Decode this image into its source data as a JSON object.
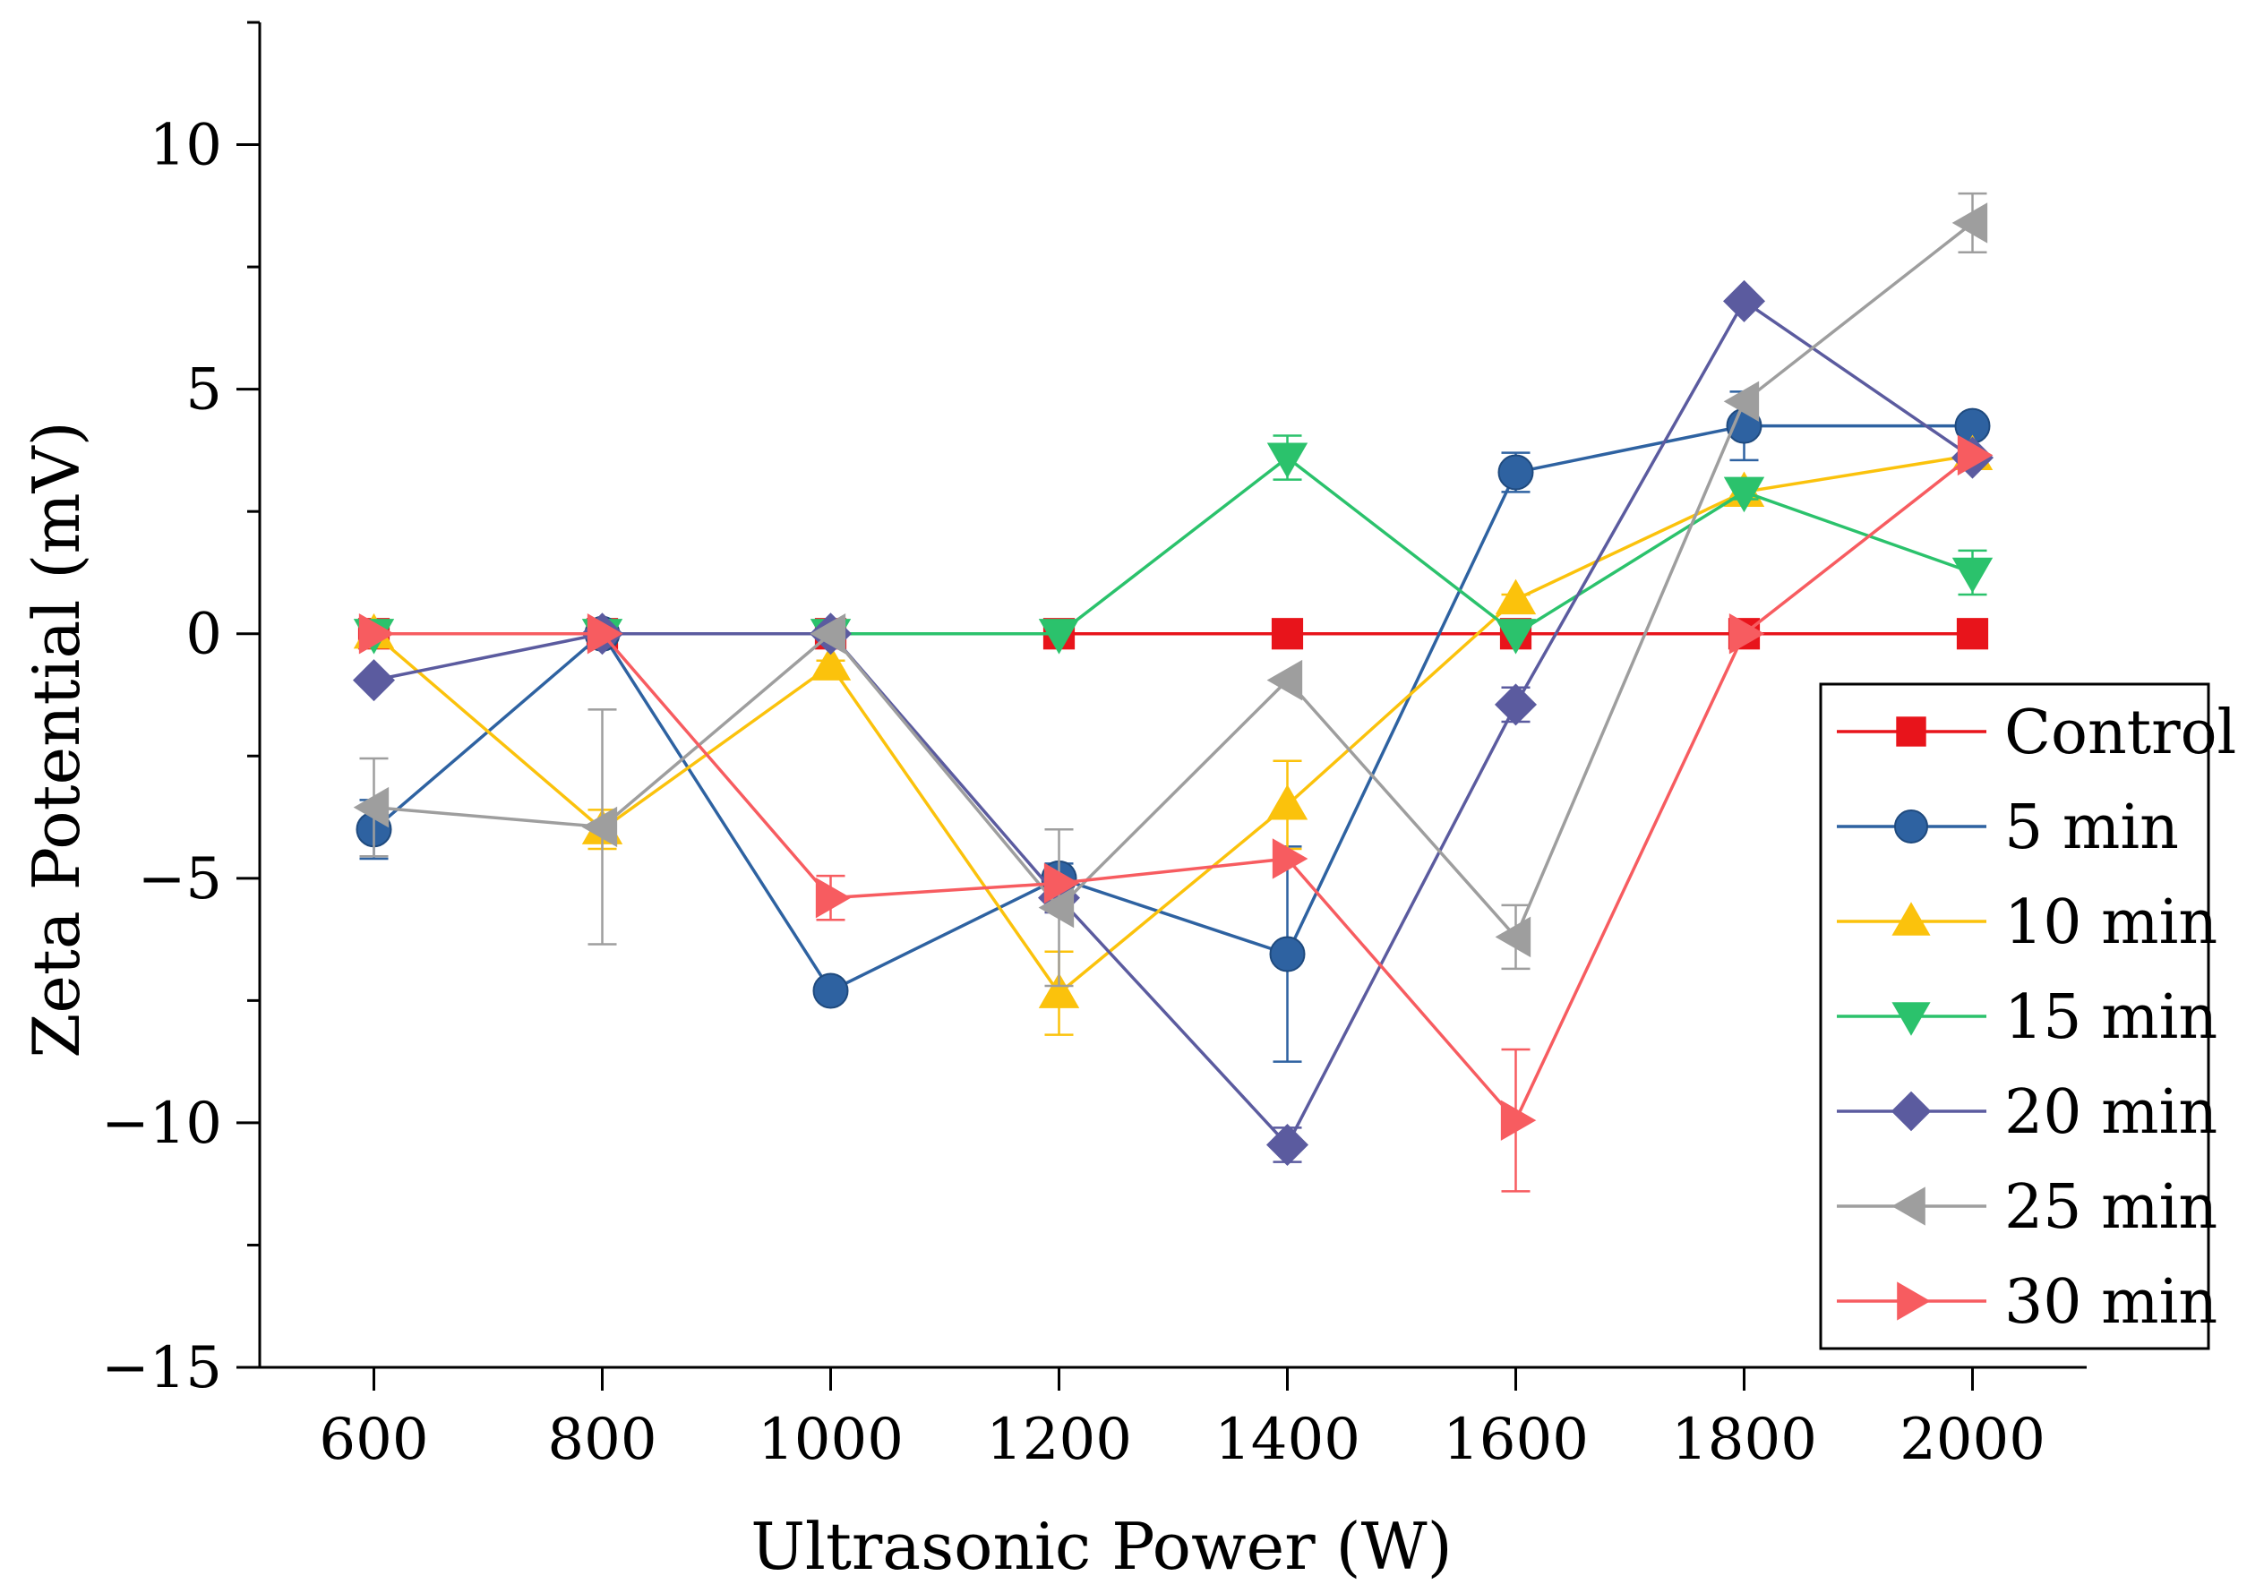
{
  "chart_data": {
    "type": "line",
    "title": "",
    "xlabel": "Ultrasonic Power (W)",
    "ylabel": "Zeta Potential (mV)",
    "xlim": [
      500,
      2100
    ],
    "ylim": [
      -15,
      12.5
    ],
    "x_ticks": [
      600,
      800,
      1000,
      1200,
      1400,
      1600,
      1800,
      2000
    ],
    "y_ticks": [
      -15,
      -10,
      -5,
      0,
      5,
      10
    ],
    "y_tick_labels": [
      "−15",
      "−10",
      "−5",
      "0",
      "5",
      "10"
    ],
    "x": [
      600,
      800,
      1000,
      1200,
      1400,
      1600,
      1800,
      2000
    ],
    "legend_position": "bottom-right",
    "series": [
      {
        "name": "Control",
        "color": "#e8141b",
        "marker": "square",
        "values": [
          0,
          0,
          0,
          0,
          0,
          0,
          0,
          0
        ],
        "errors": [
          0,
          0,
          0,
          0,
          0,
          0,
          0,
          0
        ]
      },
      {
        "name": "5 min",
        "color": "#2e62a1",
        "marker": "circle",
        "values": [
          -4.0,
          0,
          -7.3,
          -5.0,
          -6.55,
          3.3,
          4.25,
          4.25
        ],
        "errors": [
          0.6,
          0,
          0.15,
          0.3,
          2.2,
          0.4,
          0.7,
          0
        ]
      },
      {
        "name": "10 min",
        "color": "#fbc20c",
        "marker": "triangle-up",
        "values": [
          0,
          -4.0,
          -0.65,
          -7.35,
          -3.5,
          0.7,
          2.9,
          3.65
        ],
        "errors": [
          0,
          0.4,
          0.1,
          0.85,
          0.9,
          0.1,
          0.1,
          0
        ]
      },
      {
        "name": "15 min",
        "color": "#2bc26c",
        "marker": "triangle-down",
        "values": [
          0,
          0,
          0,
          0,
          3.6,
          0,
          2.9,
          1.25
        ],
        "errors": [
          0,
          0,
          0,
          0,
          0.45,
          0,
          0.15,
          0.45
        ]
      },
      {
        "name": "20 min",
        "color": "#5b5b9f",
        "marker": "diamond",
        "values": [
          -0.95,
          0,
          0,
          -5.4,
          -10.45,
          -1.45,
          6.8,
          3.6
        ],
        "errors": [
          0,
          0,
          0,
          0.3,
          0.35,
          0.35,
          0,
          0
        ]
      },
      {
        "name": "25 min",
        "color": "#9e9e9e",
        "marker": "triangle-left",
        "values": [
          -3.55,
          -3.95,
          0,
          -5.6,
          -0.95,
          -6.2,
          4.75,
          8.4
        ],
        "errors": [
          1.0,
          2.4,
          0,
          1.6,
          0,
          0.65,
          0,
          0.6
        ]
      },
      {
        "name": "30 min",
        "color": "#f75c60",
        "marker": "triangle-right",
        "values": [
          0,
          0,
          -5.4,
          -5.1,
          -4.6,
          -9.95,
          0,
          3.65
        ],
        "errors": [
          0,
          0,
          0.45,
          0,
          0,
          1.45,
          0,
          0
        ]
      }
    ]
  }
}
